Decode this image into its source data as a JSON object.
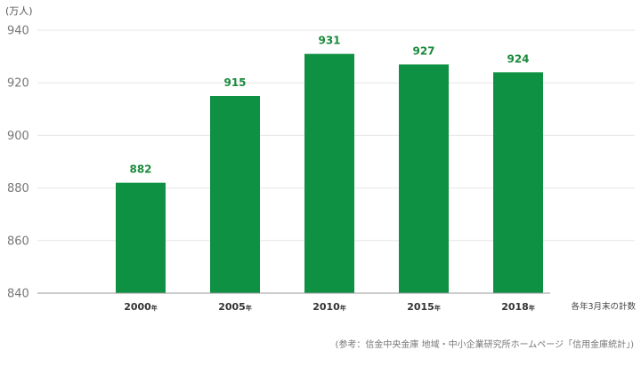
{
  "chart_data": {
    "type": "bar",
    "categories": [
      "2000",
      "2005",
      "2010",
      "2015",
      "2018"
    ],
    "category_suffix": "年",
    "values": [
      882,
      915,
      931,
      927,
      924
    ],
    "value_labels": [
      "882",
      "915",
      "931",
      "927",
      "924"
    ],
    "ylabel": "(万人)",
    "ylim": [
      840,
      940
    ],
    "yticks": [
      840,
      860,
      880,
      900,
      920,
      940
    ],
    "grid": true,
    "bar_color": "#0f9143",
    "value_label_color": "#1a8a3c",
    "note": "各年3月末の計数",
    "source": "(参考：信金中央金庫 地域・中小企業研究所ホームページ「信用金庫統計」)"
  }
}
